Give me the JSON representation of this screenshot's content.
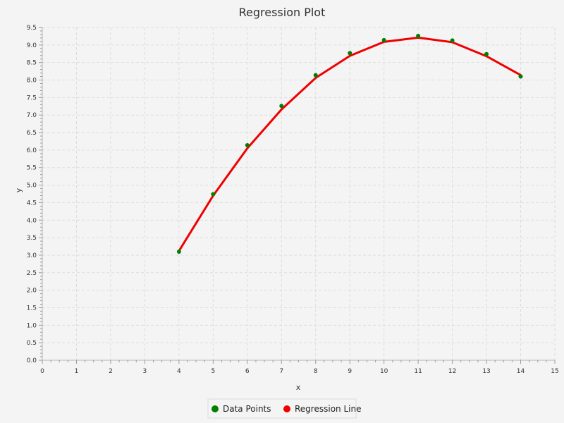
{
  "chart_data": {
    "type": "line",
    "title": "Regression Plot",
    "xlabel": "x",
    "ylabel": "y",
    "xlim": [
      0,
      15
    ],
    "ylim": [
      0.0,
      9.5
    ],
    "x_ticks": [
      0,
      1,
      2,
      3,
      4,
      5,
      6,
      7,
      8,
      9,
      10,
      11,
      12,
      13,
      14,
      15
    ],
    "x_tick_labels": [
      "0",
      "1",
      "2",
      "3",
      "4",
      "5",
      "6",
      "7",
      "8",
      "9",
      "10",
      "11",
      "12",
      "13",
      "14",
      "15"
    ],
    "y_ticks": [
      0.0,
      0.5,
      1.0,
      1.5,
      2.0,
      2.5,
      3.0,
      3.5,
      4.0,
      4.5,
      5.0,
      5.5,
      6.0,
      6.5,
      7.0,
      7.5,
      8.0,
      8.5,
      9.0,
      9.5
    ],
    "y_tick_labels": [
      "0.0",
      "0.5",
      "1.0",
      "1.5",
      "2.0",
      "2.5",
      "3.0",
      "3.5",
      "4.0",
      "4.5",
      "5.0",
      "5.5",
      "6.0",
      "6.5",
      "7.0",
      "7.5",
      "8.0",
      "8.5",
      "9.0",
      "9.5"
    ],
    "grid": true,
    "legend_position": "bottom-center",
    "series": [
      {
        "name": "Data Points",
        "kind": "scatter",
        "color": "#008000",
        "x": [
          4,
          5,
          6,
          7,
          8,
          9,
          10,
          11,
          12,
          13,
          14
        ],
        "y": [
          3.1,
          4.74,
          6.14,
          7.26,
          8.14,
          8.77,
          9.14,
          9.26,
          9.13,
          8.74,
          8.1
        ]
      },
      {
        "name": "Regression Line",
        "kind": "line",
        "color": "#ee0000",
        "x": [
          4,
          5,
          6,
          7,
          8,
          9,
          10,
          11,
          12,
          13,
          14
        ],
        "y": [
          3.12,
          4.7,
          6.05,
          7.16,
          8.06,
          8.69,
          9.09,
          9.21,
          9.08,
          8.68,
          8.14
        ]
      }
    ]
  },
  "legend": {
    "items": [
      {
        "label": "Data Points",
        "color": "#008000"
      },
      {
        "label": "Regression Line",
        "color": "#ee0000"
      }
    ]
  }
}
